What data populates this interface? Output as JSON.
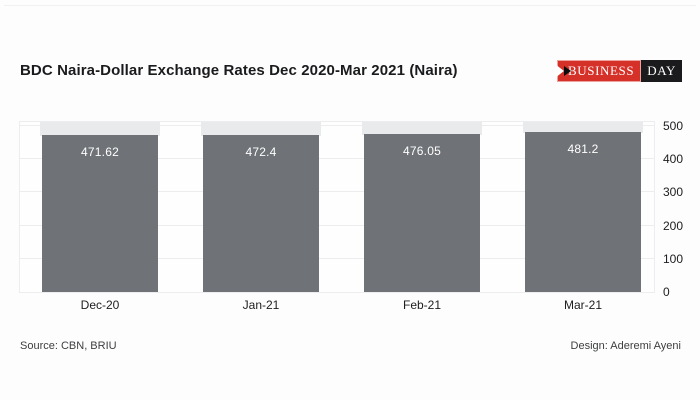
{
  "header": {
    "title": "BDC Naira-Dollar Exchange Rates Dec 2020-Mar 2021 (Naira)"
  },
  "logo": {
    "part1": "BUSINESS",
    "part2": "DAY",
    "red": "#d53129",
    "black": "#1b1a1c"
  },
  "footer": {
    "source": "Source: CBN, BRIU",
    "design": "Design: Aderemi Ayeni"
  },
  "chart_data": {
    "type": "bar",
    "title": "BDC Naira-Dollar Exchange Rates Dec 2020-Mar 2021 (Naira)",
    "categories": [
      "Dec-20",
      "Jan-21",
      "Feb-21",
      "Mar-21"
    ],
    "values": [
      471.62,
      472.4,
      476.05,
      481.2
    ],
    "value_labels": [
      "471.62",
      "472.4",
      "476.05",
      "481.2"
    ],
    "yticks": [
      0,
      100,
      200,
      300,
      400,
      500
    ],
    "ylim": [
      0,
      500
    ],
    "ylabel": "",
    "xlabel": "",
    "axis_side": "right",
    "grid": true,
    "legend": "none",
    "bar_color": "#6f7277",
    "bar_bg_color": "#e9eaec"
  }
}
